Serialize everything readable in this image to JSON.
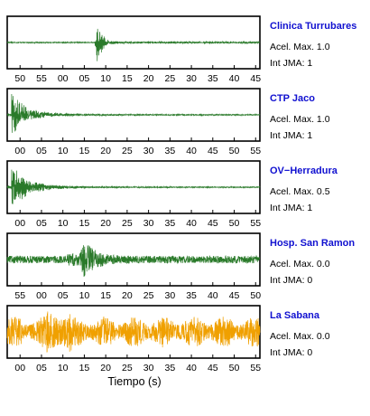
{
  "chart_data": {
    "type": "line",
    "xlabel": "Tiempo (s)",
    "panels": [
      {
        "station": "Clinica Turrubares",
        "peak_accel_label": "Acel. Max. 1.0",
        "intensity_label": "Int JMA: 1",
        "color": "#2a7a2a",
        "tick_labels": [
          "50",
          "55",
          "00",
          "05",
          "10",
          "15",
          "20",
          "25",
          "30",
          "35",
          "40",
          "45"
        ],
        "event_time_s": 21,
        "envelope": "impulsive"
      },
      {
        "station": "CTP Jaco",
        "peak_accel_label": "Acel. Max. 1.0",
        "intensity_label": "Int JMA: 1",
        "color": "#2a7a2a",
        "tick_labels": [
          "00",
          "05",
          "10",
          "15",
          "20",
          "25",
          "30",
          "35",
          "40",
          "45",
          "50",
          "55"
        ],
        "event_time_s": 1,
        "envelope": "decay"
      },
      {
        "station": "OV−Herradura",
        "peak_accel_label": "Acel. Max. 0.5",
        "intensity_label": "Int JMA: 1",
        "color": "#2a7a2a",
        "tick_labels": [
          "00",
          "05",
          "10",
          "15",
          "20",
          "25",
          "30",
          "35",
          "40",
          "45",
          "50",
          "55"
        ],
        "event_time_s": 1,
        "envelope": "decay"
      },
      {
        "station": "Hosp. San Ramon",
        "peak_accel_label": "Acel. Max. 0.0",
        "intensity_label": "Int JMA: 0",
        "color": "#2a7a2a",
        "tick_labels": [
          "55",
          "00",
          "05",
          "10",
          "15",
          "20",
          "25",
          "30",
          "35",
          "40",
          "45",
          "50"
        ],
        "event_time_s": 18,
        "envelope": "noisy"
      },
      {
        "station": "La Sabana",
        "peak_accel_label": "Acel. Max. 0.0",
        "intensity_label": "Int JMA: 0",
        "color": "#f0a000",
        "tick_labels": [
          "00",
          "05",
          "10",
          "15",
          "20",
          "25",
          "30",
          "35",
          "40",
          "45",
          "50",
          "55"
        ],
        "event_time_s": 12,
        "envelope": "noise"
      }
    ]
  }
}
